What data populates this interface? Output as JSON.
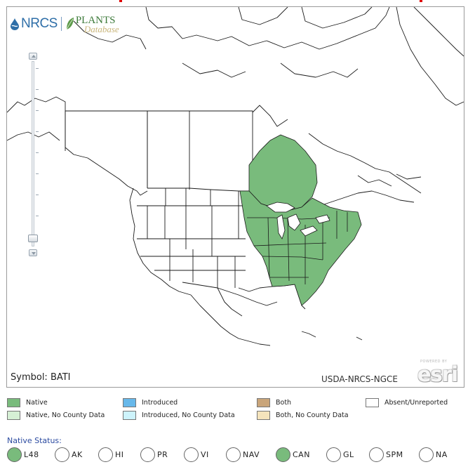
{
  "map": {
    "credit": "USDA-NRCS-NGCE",
    "symbol_label": "Symbol: BATI",
    "logo": {
      "agency": "NRCS",
      "product_line1": "PLANTS",
      "product_line2": "Database"
    },
    "powered_by": {
      "caption": "POWERED BY",
      "brand": "esri"
    },
    "zoom_level": "minimum",
    "native_color": "#79bb7c",
    "boundary_color": "#1a1a1a"
  },
  "legend": {
    "items": [
      {
        "label": "Native",
        "color": "#79bb7c"
      },
      {
        "label": "Native, No County Data",
        "color": "#d6f0d5"
      },
      {
        "label": "Introduced",
        "color": "#67b8ea"
      },
      {
        "label": "Introduced, No County Data",
        "color": "#cdf3fb"
      },
      {
        "label": "Both",
        "color": "#c9a57a"
      },
      {
        "label": "Both, No County Data",
        "color": "#f5e4bc"
      },
      {
        "label": "Absent/Unreported",
        "color": "#ffffff"
      }
    ]
  },
  "native_status": {
    "title": "Native Status:",
    "options": [
      {
        "label": "L48",
        "selected": true
      },
      {
        "label": "AK",
        "selected": false
      },
      {
        "label": "HI",
        "selected": false
      },
      {
        "label": "PR",
        "selected": false
      },
      {
        "label": "VI",
        "selected": false
      },
      {
        "label": "NAV",
        "selected": false
      },
      {
        "label": "CAN",
        "selected": true
      },
      {
        "label": "GL",
        "selected": false
      },
      {
        "label": "SPM",
        "selected": false
      },
      {
        "label": "NA",
        "selected": false
      }
    ]
  }
}
